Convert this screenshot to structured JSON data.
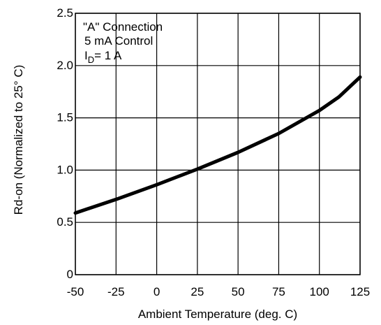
{
  "chart_data": {
    "type": "line",
    "xlabel": "Ambient Temperature (deg. C)",
    "ylabel": "Rd-on (Normalized to 25° C)",
    "xlim": [
      -50,
      125
    ],
    "ylim": [
      0,
      2.5
    ],
    "x_ticks": [
      "-50",
      "-25",
      "0",
      "25",
      "50",
      "75",
      "100",
      "125"
    ],
    "y_ticks": [
      "0",
      "0.5",
      "1.0",
      "1.5",
      "2.0",
      "2.5"
    ],
    "grid": true,
    "annotations": {
      "line1": "\"A\" Connection",
      "line2": "5 mA Control",
      "line3_main": "I",
      "line3_sub": "D",
      "line3_rest": "= 1 A"
    },
    "series": [
      {
        "color": "#000000",
        "x": [
          -50,
          -25,
          0,
          25,
          50,
          75,
          100,
          112,
          125
        ],
        "y": [
          0.59,
          0.72,
          0.86,
          1.01,
          1.17,
          1.35,
          1.57,
          1.7,
          1.89
        ]
      }
    ]
  }
}
